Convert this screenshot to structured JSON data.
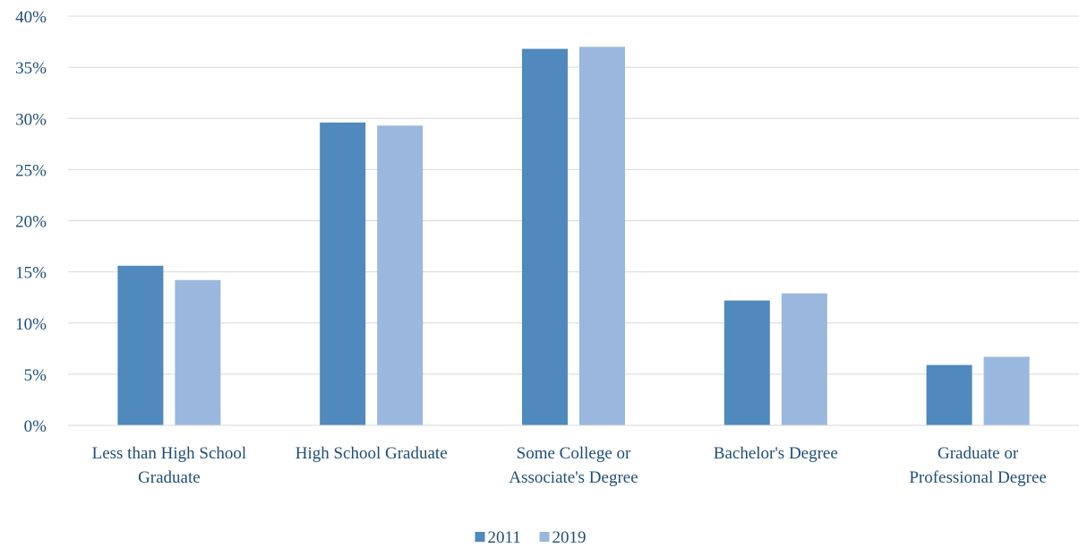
{
  "chart_data": {
    "type": "bar",
    "title": "",
    "xlabel": "",
    "ylabel": "",
    "categories": [
      [
        "Less than High School",
        "Graduate"
      ],
      [
        "High School Graduate"
      ],
      [
        "Some College or",
        "Associate's Degree"
      ],
      [
        "Bachelor's Degree"
      ],
      [
        "Graduate or",
        "Professional Degree"
      ]
    ],
    "series": [
      {
        "name": "2011",
        "color": "#4f89bd",
        "values": [
          15.6,
          29.6,
          36.8,
          12.2,
          5.9
        ]
      },
      {
        "name": "2019",
        "color": "#9ab8de",
        "values": [
          14.2,
          29.3,
          37.0,
          12.9,
          6.7
        ]
      }
    ],
    "ylim": [
      0,
      40
    ],
    "yticks": [
      0,
      5,
      10,
      15,
      20,
      25,
      30,
      35,
      40
    ],
    "y_tick_format": "percent",
    "grid": true,
    "legend": {
      "position": "bottom-center"
    }
  }
}
